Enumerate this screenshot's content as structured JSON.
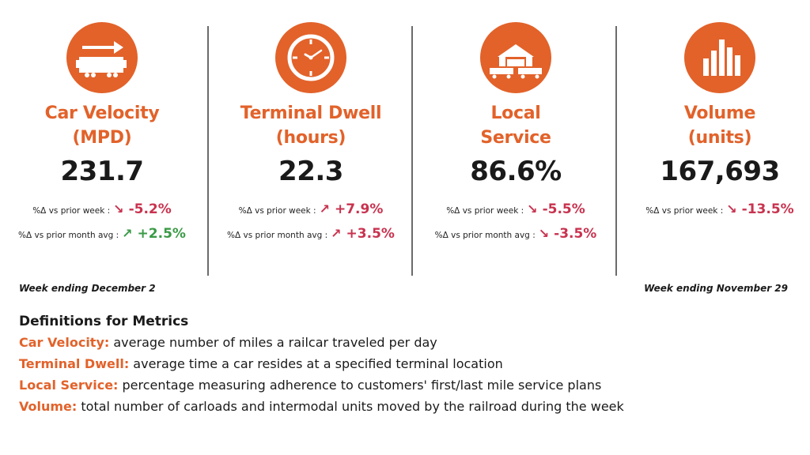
{
  "accent_color": "#e2622a",
  "negative_color": "#c8334f",
  "positive_color": "#3a9a46",
  "metrics": [
    {
      "icon": "railcar-arrow-icon",
      "title_line1": "Car Velocity",
      "title_line2": "(MPD)",
      "value": "231.7",
      "changes": [
        {
          "label": "%Δ vs prior week :",
          "arrow": "↘",
          "value": "-5.2%",
          "tone": "negative"
        },
        {
          "label": "%Δ vs prior month avg :",
          "arrow": "↗",
          "value": "+2.5%",
          "tone": "positive"
        }
      ]
    },
    {
      "icon": "clock-icon",
      "title_line1": "Terminal Dwell",
      "title_line2": "(hours)",
      "value": "22.3",
      "changes": [
        {
          "label": "%Δ vs prior week :",
          "arrow": "↗",
          "value": "+7.9%",
          "tone": "negative"
        },
        {
          "label": "%Δ vs prior month avg :",
          "arrow": "↗",
          "value": "+3.5%",
          "tone": "negative"
        }
      ]
    },
    {
      "icon": "warehouse-railcar-icon",
      "title_line1": "Local",
      "title_line2": "Service",
      "value": "86.6%",
      "changes": [
        {
          "label": "%Δ vs prior week :",
          "arrow": "↘",
          "value": "-5.5%",
          "tone": "negative"
        },
        {
          "label": "%Δ vs prior month avg :",
          "arrow": "↘",
          "value": "-3.5%",
          "tone": "negative"
        }
      ]
    },
    {
      "icon": "bar-chart-icon",
      "title_line1": "Volume",
      "title_line2": "(units)",
      "value": "167,693",
      "changes": [
        {
          "label": "%Δ vs prior week :",
          "arrow": "↘",
          "value": "-13.5%",
          "tone": "negative"
        }
      ]
    }
  ],
  "week_ending_left": "Week ending December 2",
  "week_ending_right": "Week ending November 29",
  "definitions": {
    "title": "Definitions for Metrics",
    "items": [
      {
        "term": "Car Velocity:",
        "text": " average number of miles a railcar traveled per day"
      },
      {
        "term": "Terminal Dwell:",
        "text": " average time a car resides at a specified terminal location"
      },
      {
        "term": "Local Service:",
        "text": " percentage measuring adherence to customers' first/last mile service plans"
      },
      {
        "term": "Volume:",
        "text": " total number of carloads and intermodal units moved by the railroad during the week"
      }
    ]
  }
}
